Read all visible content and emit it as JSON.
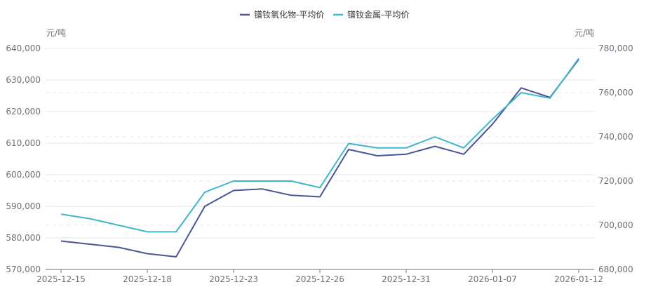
{
  "chart_data": {
    "type": "line",
    "title": "",
    "x": [
      "2025-12-15",
      "2025-12-16",
      "2025-12-17",
      "2025-12-18",
      "2025-12-19",
      "2025-12-22",
      "2025-12-23",
      "2025-12-24",
      "2025-12-25",
      "2025-12-26",
      "2025-12-29",
      "2025-12-30",
      "2025-12-31",
      "2026-01-05",
      "2026-01-06",
      "2026-01-07",
      "2026-01-08",
      "2026-01-09",
      "2026-01-12"
    ],
    "x_tick_labels": [
      "2025-12-15",
      "2025-12-18",
      "2025-12-23",
      "2025-12-26",
      "2025-12-31",
      "2026-01-07",
      "2026-01-12"
    ],
    "y_left": {
      "unit": "元/吨",
      "range": [
        570000,
        640000
      ],
      "ticks": [
        "570,000",
        "580,000",
        "590,000",
        "600,000",
        "610,000",
        "620,000",
        "630,000",
        "640,000"
      ]
    },
    "y_right": {
      "unit": "元/吨",
      "range": [
        680000,
        780000
      ],
      "ticks": [
        "680,000",
        "700,000",
        "720,000",
        "740,000",
        "760,000",
        "780,000"
      ]
    },
    "legend_position": "top-center",
    "series": [
      {
        "name": "镨钕氧化物-平均价",
        "axis": "left",
        "color": "#4b5596",
        "values": [
          579000,
          578000,
          577000,
          575000,
          574000,
          590000,
          595000,
          595500,
          593500,
          593000,
          608000,
          606000,
          606500,
          609000,
          606500,
          616000,
          627500,
          624500,
          636500
        ]
      },
      {
        "name": "镨钕金属-平均价",
        "axis": "right",
        "color": "#3fb6c9",
        "values": [
          705000,
          703000,
          700000,
          697000,
          697000,
          715000,
          720000,
          720000,
          720000,
          717000,
          737000,
          735000,
          735000,
          740000,
          735000,
          748000,
          760000,
          757500,
          775500
        ]
      }
    ]
  }
}
